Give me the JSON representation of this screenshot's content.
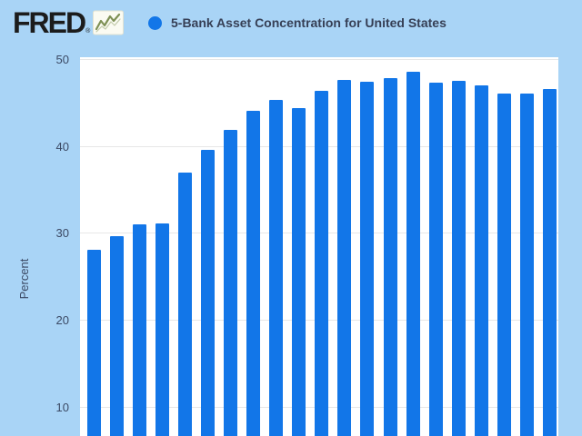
{
  "header": {
    "logo_text": "FRED",
    "registered_mark": "®",
    "legend": {
      "marker": "filled-circle",
      "series_title": "5-Bank Asset Concentration for United States"
    }
  },
  "y_axis": {
    "title": "Percent",
    "tick_labels": [
      "50",
      "40",
      "30",
      "20",
      "10"
    ]
  },
  "colors": {
    "page_background": "#a9d4f6",
    "plot_background": "#ffffff",
    "bar_blue": "#1276e8",
    "gridline": "#e7e7e7",
    "axis_text": "#3b4964",
    "title_text": "#363f55",
    "logo_text": "#1c1c1c",
    "logo_sparkline_green": "#7e9055",
    "logo_icon_background": "#fbfbf2"
  },
  "chart_data": {
    "type": "bar",
    "title": "5-Bank Asset Concentration for United States",
    "xlabel": "",
    "ylabel": "Percent",
    "series": [
      {
        "name": "5-Bank Asset Concentration for United States",
        "values": [
          28.1,
          29.6,
          31.0,
          31.1,
          36.9,
          39.5,
          41.8,
          44.0,
          45.3,
          44.4,
          46.3,
          47.6,
          47.4,
          47.8,
          48.5,
          47.3,
          47.5,
          47.0,
          46.0,
          46.0,
          46.5
        ]
      }
    ],
    "bar_count": 21,
    "y_ticks": [
      10,
      20,
      30,
      40,
      50
    ],
    "ylim_visible": [
      6.8,
      50.2
    ],
    "grid": true,
    "legend_position": "top-left",
    "x_tick_labels_visible": false
  }
}
